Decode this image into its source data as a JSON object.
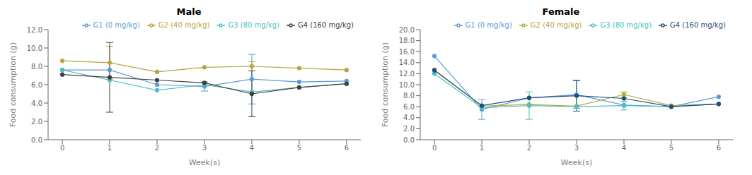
{
  "chart_data": [
    {
      "type": "line",
      "title": "Male",
      "x_label": "Week(s)",
      "y_label": "Food consumption (g)",
      "x": [
        0,
        1,
        2,
        3,
        4,
        5,
        6
      ],
      "xlim": [
        -0.3,
        6.3
      ],
      "xticks": [
        0,
        1,
        2,
        3,
        4,
        5,
        6
      ],
      "ylim": [
        0.0,
        12.0
      ],
      "yticks": [
        {
          "value": 0,
          "label": "0.0"
        },
        {
          "value": 2,
          "label": "2.0"
        },
        {
          "value": 4,
          "label": "4.0"
        },
        {
          "value": 6,
          "label": "6.0"
        },
        {
          "value": 8,
          "label": "8.0"
        },
        {
          "value": 10,
          "label": "10.0"
        },
        {
          "value": 12,
          "label": "12.0"
        }
      ],
      "grid": false,
      "legend": "upper right",
      "marker": "o",
      "line_style": "solid",
      "series": [
        {
          "name": "G1 (0 mg/kg)",
          "color": "#5b9bd5",
          "values": [
            7.6,
            7.6,
            6.0,
            5.8,
            6.6,
            6.3,
            6.4
          ],
          "errors": [
            0.0,
            0.0,
            0.0,
            0.5,
            2.7,
            0.0,
            0.0
          ]
        },
        {
          "name": "G2 (40 mg/kg)",
          "color": "#b5a642",
          "values": [
            8.6,
            8.4,
            7.4,
            7.9,
            8.0,
            7.8,
            7.6
          ],
          "errors": [
            0.0,
            1.8,
            0.0,
            0.0,
            0.5,
            0.0,
            0.0
          ]
        },
        {
          "name": "G3 (80 mg/kg)",
          "color": "#4cbfbf",
          "values": [
            7.6,
            6.5,
            5.4,
            6.0,
            5.2,
            5.7,
            6.1
          ],
          "errors": [
            0.0,
            0.0,
            0.0,
            0.0,
            0.0,
            0.0,
            0.0
          ]
        },
        {
          "name": "G4 (160 mg/kg)",
          "color": "#404040",
          "values": [
            7.1,
            6.8,
            6.5,
            6.2,
            5.0,
            5.7,
            6.1
          ],
          "errors": [
            0.0,
            3.8,
            0.0,
            0.0,
            2.5,
            0.0,
            0.0
          ]
        }
      ]
    },
    {
      "type": "line",
      "title": "Female",
      "x_label": "Week(s)",
      "y_label": "Food consumption (g)",
      "x": [
        0,
        1,
        2,
        3,
        4,
        5,
        6
      ],
      "xlim": [
        -0.3,
        6.3
      ],
      "xticks": [
        0,
        1,
        2,
        3,
        4,
        5,
        6
      ],
      "ylim": [
        0.0,
        20.0
      ],
      "yticks": [
        {
          "value": 0,
          "label": "0.0"
        },
        {
          "value": 2,
          "label": "2.0"
        },
        {
          "value": 4,
          "label": "4.0"
        },
        {
          "value": 6,
          "label": "6.0"
        },
        {
          "value": 8,
          "label": "8.0"
        },
        {
          "value": 10,
          "label": "10.0"
        },
        {
          "value": 12,
          "label": "12.0"
        },
        {
          "value": 14,
          "label": "14.0"
        },
        {
          "value": 16,
          "label": "16.0"
        },
        {
          "value": 18,
          "label": "18.0"
        },
        {
          "value": 20,
          "label": "20.0"
        }
      ],
      "grid": false,
      "legend": "upper right",
      "marker": "o",
      "line_style": "solid",
      "series": [
        {
          "name": "G1 (0 mg/kg)",
          "color": "#5b9bd5",
          "values": [
            15.2,
            5.5,
            7.6,
            8.2,
            6.3,
            6.0,
            7.8
          ],
          "errors": [
            0.0,
            1.8,
            0.0,
            2.5,
            0.0,
            0.0,
            0.0
          ]
        },
        {
          "name": "G2 (40 mg/kg)",
          "color": "#b5a642",
          "values": [
            12.7,
            6.1,
            6.4,
            6.1,
            8.2,
            6.2,
            6.5
          ],
          "errors": [
            0.0,
            0.0,
            0.0,
            0.0,
            0.5,
            0.0,
            0.0
          ]
        },
        {
          "name": "G3 (80 mg/kg)",
          "color": "#4cbfbf",
          "values": [
            12.0,
            5.8,
            6.2,
            6.0,
            6.2,
            6.0,
            6.5
          ],
          "errors": [
            0.0,
            0.0,
            2.5,
            0.0,
            0.8,
            0.0,
            0.0
          ]
        },
        {
          "name": "G4 (160 mg/kg)",
          "color": "#1f4e79",
          "values": [
            12.6,
            6.2,
            7.6,
            8.0,
            7.5,
            6.0,
            6.5
          ],
          "errors": [
            0.0,
            0.0,
            0.0,
            2.8,
            0.0,
            0.0,
            0.0
          ]
        }
      ]
    }
  ]
}
